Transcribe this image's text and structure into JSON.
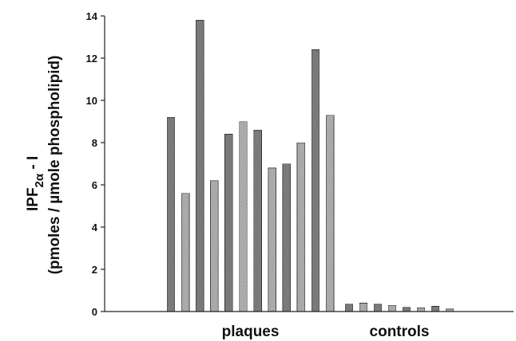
{
  "chart_data": {
    "type": "bar",
    "ylabel_main": "IPF",
    "ylabel_sub": "2α",
    "ylabel_suffix": " - I",
    "ylabel_line2": "(pmoles / µmole phospholipid)",
    "ylim": [
      0,
      14
    ],
    "yticks": [
      "0",
      "2",
      "4",
      "6",
      "8",
      "10",
      "12",
      "14"
    ],
    "groups": [
      {
        "label": "plaques",
        "values": [
          9.2,
          5.6,
          13.8,
          6.2,
          8.4,
          9.0,
          8.6,
          6.8,
          7.0,
          8.0,
          12.4,
          9.3
        ]
      },
      {
        "label": "controls",
        "values": [
          0.35,
          0.4,
          0.35,
          0.3,
          0.2,
          0.18,
          0.25,
          0.12
        ]
      }
    ],
    "colors": {
      "bar_fill": "#c4c4c4",
      "bar_dark": "#8e8e8e",
      "bar_stroke": "#333333",
      "axis": "#222222"
    }
  }
}
